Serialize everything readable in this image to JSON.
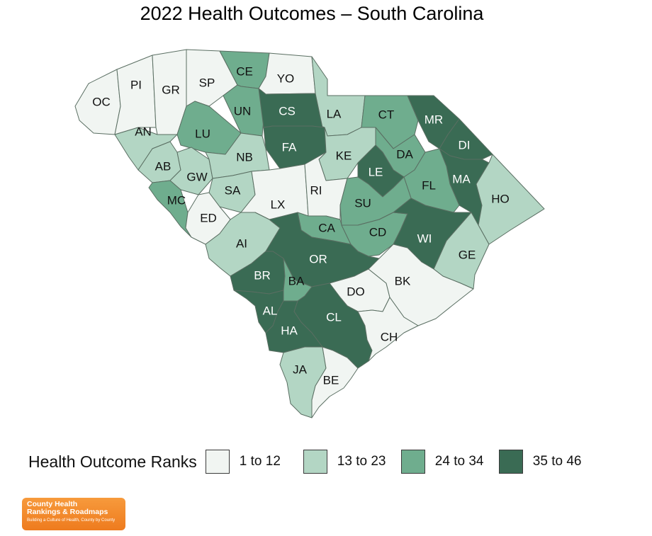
{
  "title": "2022 Health Outcomes – South Carolina",
  "legend": {
    "title": "Health Outcome Ranks",
    "items": [
      {
        "label": "1 to 12",
        "color": "#f1f5f2"
      },
      {
        "label": "13 to 23",
        "color": "#b3d6c4"
      },
      {
        "label": "24 to 34",
        "color": "#6fad8e"
      },
      {
        "label": "35 to 46",
        "color": "#3a6b54"
      }
    ]
  },
  "logo": {
    "line1": "County Health",
    "line2": "Rankings & Roadmaps",
    "line3": "Building a Culture of Health, County by County"
  },
  "counties": [
    {
      "code": "OC",
      "tier": 0
    },
    {
      "code": "PI",
      "tier": 0
    },
    {
      "code": "GR",
      "tier": 0
    },
    {
      "code": "SP",
      "tier": 0
    },
    {
      "code": "CE",
      "tier": 2
    },
    {
      "code": "YO",
      "tier": 0
    },
    {
      "code": "LA",
      "tier": 1
    },
    {
      "code": "CT",
      "tier": 2
    },
    {
      "code": "MR",
      "tier": 3
    },
    {
      "code": "DI",
      "tier": 3
    },
    {
      "code": "AN",
      "tier": 1
    },
    {
      "code": "LU",
      "tier": 2
    },
    {
      "code": "UN",
      "tier": 2
    },
    {
      "code": "CS",
      "tier": 3
    },
    {
      "code": "FA",
      "tier": 3
    },
    {
      "code": "KE",
      "tier": 1
    },
    {
      "code": "DA",
      "tier": 2
    },
    {
      "code": "LE",
      "tier": 3
    },
    {
      "code": "MA",
      "tier": 3
    },
    {
      "code": "FL",
      "tier": 2
    },
    {
      "code": "HO",
      "tier": 1
    },
    {
      "code": "AB",
      "tier": 1
    },
    {
      "code": "GW",
      "tier": 1
    },
    {
      "code": "NB",
      "tier": 1
    },
    {
      "code": "SA",
      "tier": 1
    },
    {
      "code": "LX",
      "tier": 0
    },
    {
      "code": "RI",
      "tier": 0
    },
    {
      "code": "SU",
      "tier": 2
    },
    {
      "code": "MC",
      "tier": 2
    },
    {
      "code": "ED",
      "tier": 0
    },
    {
      "code": "CA",
      "tier": 2
    },
    {
      "code": "CD",
      "tier": 2
    },
    {
      "code": "WI",
      "tier": 3
    },
    {
      "code": "GE",
      "tier": 1
    },
    {
      "code": "AI",
      "tier": 1
    },
    {
      "code": "OR",
      "tier": 3
    },
    {
      "code": "BR",
      "tier": 3
    },
    {
      "code": "BA",
      "tier": 2
    },
    {
      "code": "DO",
      "tier": 0
    },
    {
      "code": "BK",
      "tier": 0
    },
    {
      "code": "AL",
      "tier": 3
    },
    {
      "code": "CL",
      "tier": 3
    },
    {
      "code": "HA",
      "tier": 3
    },
    {
      "code": "CH",
      "tier": 0
    },
    {
      "code": "JA",
      "tier": 1
    },
    {
      "code": "BE",
      "tier": 0
    }
  ]
}
